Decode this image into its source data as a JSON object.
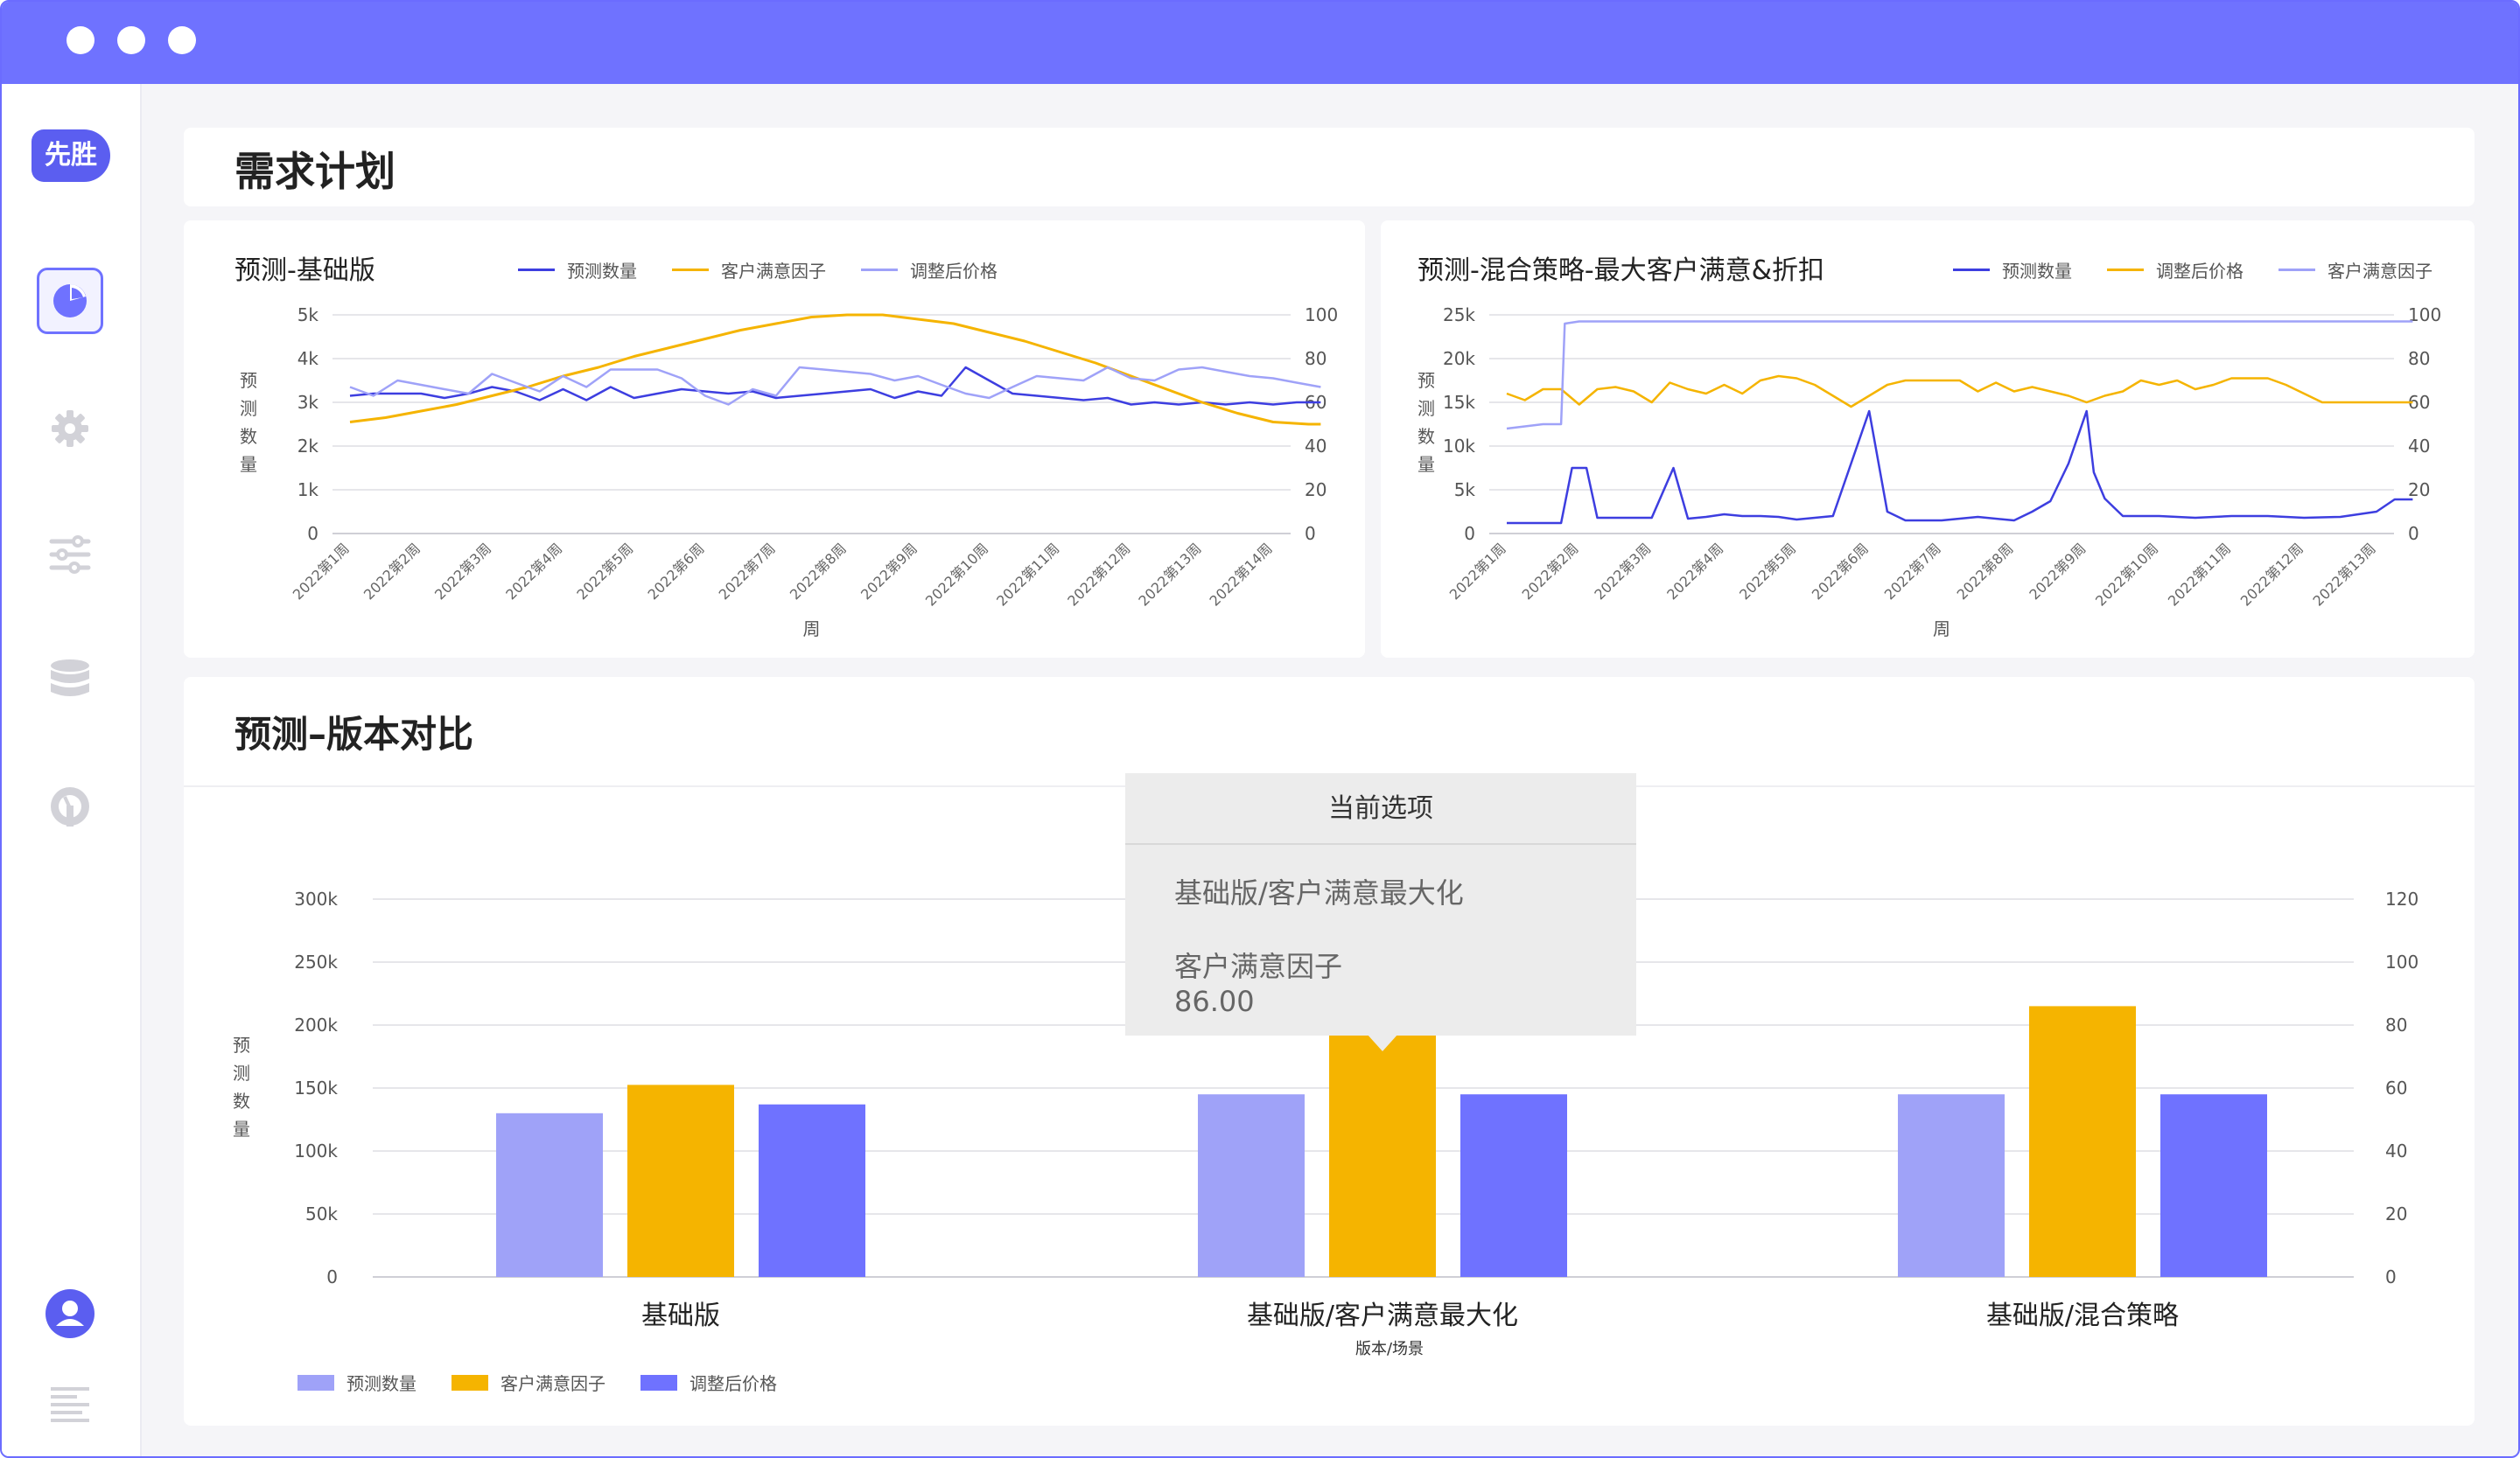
{
  "app": {
    "logo_text": "先胜"
  },
  "colors": {
    "accent": "#6f72ff",
    "qty_lavender": "#9fa2f8",
    "qty_dark": "#3d3ee0",
    "factor_orange": "#f5b400",
    "price_purple": "#6f72ff"
  },
  "sidebar": {
    "items": [
      {
        "icon": "pie-chart-icon",
        "active": true
      },
      {
        "icon": "gear-icon"
      },
      {
        "icon": "sliders-icon"
      },
      {
        "icon": "database-icon"
      },
      {
        "icon": "dashboard-icon"
      }
    ],
    "bottom": [
      {
        "icon": "user-icon"
      },
      {
        "icon": "menu-lines-icon"
      }
    ]
  },
  "page": {
    "title": "需求计划"
  },
  "chart1": {
    "title": "预测-基础版",
    "legend": [
      "预测数量",
      "客户满意因子",
      "调整后价格"
    ],
    "ylabel": "预测数量",
    "xlabel": "周",
    "yticks": [
      "5k",
      "4k",
      "3k",
      "2k",
      "1k",
      "0"
    ],
    "y2ticks": [
      "100",
      "80",
      "60",
      "40",
      "20",
      "0"
    ],
    "xticks": [
      "2022第1周",
      "2022第2周",
      "2022第3周",
      "2022第4周",
      "2022第5周",
      "2022第6周",
      "2022第7周",
      "2022第8周",
      "2022第9周",
      "2022第10周",
      "2022第11周",
      "2022第12周",
      "2022第13周",
      "2022第14周"
    ]
  },
  "chart2": {
    "title": "预测-混合策略-最大客户满意&折扣",
    "legend": [
      "预测数量",
      "调整后价格",
      "客户满意因子"
    ],
    "ylabel": "预测数量",
    "xlabel": "周",
    "yticks": [
      "25k",
      "20k",
      "15k",
      "10k",
      "5k",
      "0"
    ],
    "y2ticks": [
      "100",
      "80",
      "60",
      "40",
      "20",
      "0"
    ],
    "xticks": [
      "2022第1周",
      "2022第2周",
      "2022第3周",
      "2022第4周",
      "2022第5周",
      "2022第6周",
      "2022第7周",
      "2022第8周",
      "2022第9周",
      "2022第10周",
      "2022第11周",
      "2022第12周",
      "2022第13周"
    ]
  },
  "compare": {
    "title": "预测–版本对比",
    "ylabel": "预测数量",
    "xlabel": "版本/场景",
    "yticks": [
      "300k",
      "250k",
      "200k",
      "150k",
      "100k",
      "50k",
      "0"
    ],
    "y2ticks": [
      "120",
      "100",
      "80",
      "60",
      "40",
      "20",
      "0"
    ],
    "legend": [
      "预测数量",
      "客户满意因子",
      "调整后价格"
    ]
  },
  "tooltip": {
    "header": "当前选项",
    "line1": "基础版/客户满意最大化",
    "line2_label": "客户满意因子",
    "line2_value": "86.00"
  },
  "chart_data": [
    {
      "type": "line",
      "title": "预测-基础版",
      "xlabel": "周",
      "ylabel": "预测数量",
      "categories": [
        "2022第1周",
        "2022第2周",
        "2022第3周",
        "2022第4周",
        "2022第5周",
        "2022第6周",
        "2022第7周",
        "2022第8周",
        "2022第9周",
        "2022第10周",
        "2022第11周",
        "2022第12周",
        "2022第13周",
        "2022第14周"
      ],
      "ylim": [
        0,
        5000
      ],
      "y2lim": [
        0,
        100
      ],
      "series": [
        {
          "name": "预测数量",
          "axis": "left",
          "x": [
            1,
            1.33,
            1.67,
            2,
            2.33,
            2.67,
            3,
            3.33,
            3.67,
            4,
            4.33,
            4.67,
            5,
            5.33,
            5.67,
            6,
            6.33,
            6.67,
            7,
            7.33,
            7.67,
            8,
            8.33,
            8.67,
            9,
            9.33,
            9.67,
            10,
            10.33,
            10.67,
            11,
            11.33,
            11.67,
            12,
            12.33,
            12.67,
            13,
            13.33,
            13.67,
            14,
            14.33,
            14.67
          ],
          "values": [
            3150,
            3200,
            3200,
            3200,
            3100,
            3200,
            3350,
            3250,
            3050,
            3300,
            3050,
            3350,
            3100,
            3200,
            3300,
            3250,
            3200,
            3250,
            3100,
            3150,
            3200,
            3250,
            3300,
            3100,
            3250,
            3150,
            3800,
            3500,
            3200,
            3150,
            3100,
            3050,
            3100,
            2950,
            3000,
            2950,
            3000,
            2950,
            3000,
            2950,
            3000,
            3000
          ]
        },
        {
          "name": "客户满意因子",
          "axis": "right",
          "x": [
            1,
            1.5,
            2,
            2.5,
            3,
            3.5,
            4,
            4.5,
            5,
            5.5,
            6,
            6.5,
            7,
            7.5,
            8,
            8.5,
            9,
            9.5,
            10,
            10.5,
            11,
            11.5,
            12,
            12.5,
            13,
            13.5,
            14,
            14.5,
            14.67
          ],
          "values": [
            51,
            53,
            56,
            59,
            63,
            67,
            72,
            76,
            81,
            85,
            89,
            93,
            96,
            99,
            100,
            100,
            98,
            96,
            92,
            88,
            83,
            78,
            72,
            66,
            60,
            55,
            51,
            50,
            50
          ]
        },
        {
          "name": "调整后价格",
          "axis": "right",
          "x": [
            1,
            1.33,
            1.67,
            2,
            2.33,
            2.67,
            3,
            3.33,
            3.67,
            4,
            4.33,
            4.67,
            5,
            5.33,
            5.67,
            6,
            6.33,
            6.67,
            7,
            7.33,
            7.67,
            8,
            8.33,
            8.67,
            9,
            9.33,
            9.67,
            10,
            10.33,
            10.67,
            11,
            11.33,
            11.67,
            12,
            12.33,
            12.67,
            13,
            13.33,
            13.67,
            14,
            14.33,
            14.67
          ],
          "values": [
            67,
            63,
            70,
            68,
            66,
            64,
            73,
            69,
            65,
            72,
            67,
            75,
            75,
            75,
            71,
            63,
            59,
            66,
            63,
            76,
            75,
            74,
            73,
            70,
            72,
            68,
            64,
            62,
            67,
            72,
            71,
            70,
            76,
            71,
            70,
            75,
            76,
            74,
            72,
            71,
            69,
            67
          ]
        }
      ]
    },
    {
      "type": "line",
      "title": "预测-混合策略-最大客户满意&折扣",
      "xlabel": "周",
      "ylabel": "预测数量",
      "categories": [
        "2022第1周",
        "2022第2周",
        "2022第3周",
        "2022第4周",
        "2022第5周",
        "2022第6周",
        "2022第7周",
        "2022第8周",
        "2022第9周",
        "2022第10周",
        "2022第11周",
        "2022第12周",
        "2022第13周"
      ],
      "ylim": [
        0,
        25000
      ],
      "y2lim": [
        0,
        100
      ],
      "series": [
        {
          "name": "预测数量",
          "axis": "left",
          "x": [
            1,
            1.5,
            1.75,
            1.9,
            2,
            2.1,
            2.25,
            2.5,
            2.75,
            3,
            3.3,
            3.5,
            3.75,
            4,
            4.25,
            4.5,
            4.75,
            5,
            5.5,
            6,
            6.25,
            6.5,
            6.6,
            6.75,
            7,
            7.5,
            8,
            8.25,
            8.5,
            8.75,
            9,
            9.1,
            9.25,
            9.5,
            10,
            10.5,
            11,
            11.5,
            12,
            12.5,
            13,
            13.25,
            13.5
          ],
          "values": [
            1200,
            1200,
            1200,
            7500,
            7500,
            7500,
            1800,
            1800,
            1800,
            1800,
            7500,
            1700,
            1900,
            2200,
            2000,
            2000,
            1900,
            1600,
            2000,
            14000,
            2500,
            1500,
            1500,
            1500,
            1500,
            1900,
            1500,
            2500,
            3700,
            8000,
            14000,
            7000,
            4000,
            2000,
            2000,
            1800,
            2000,
            2000,
            1800,
            1900,
            2500,
            3900,
            3900
          ]
        },
        {
          "name": "调整后价格",
          "axis": "right",
          "x": [
            1,
            1.25,
            1.5,
            1.75,
            2,
            2.25,
            2.5,
            2.75,
            3,
            3.25,
            3.5,
            3.75,
            4,
            4.25,
            4.5,
            4.75,
            5,
            5.25,
            5.5,
            5.75,
            6,
            6.25,
            6.5,
            6.75,
            7,
            7.25,
            7.5,
            7.75,
            8,
            8.25,
            8.5,
            8.75,
            9,
            9.25,
            9.5,
            9.75,
            10,
            10.25,
            10.5,
            10.75,
            11,
            11.25,
            11.5,
            11.75,
            12,
            12.25,
            12.5,
            12.75,
            13,
            13.25,
            13.5
          ],
          "values": [
            64,
            61,
            66,
            66,
            59,
            66,
            67,
            65,
            60,
            69,
            66,
            64,
            68,
            64,
            70,
            72,
            71,
            68,
            63,
            58,
            63,
            68,
            70,
            70,
            70,
            70,
            65,
            69,
            65,
            67,
            65,
            63,
            60,
            63,
            65,
            70,
            68,
            70,
            66,
            68,
            71,
            71,
            71,
            68,
            64,
            60,
            60,
            60,
            60,
            60,
            60
          ]
        },
        {
          "name": "客户满意因子",
          "axis": "right",
          "x": [
            1,
            1.5,
            1.75,
            1.8,
            2,
            3,
            4,
            5,
            6,
            7,
            8,
            9,
            10,
            11,
            12,
            13,
            13.5
          ],
          "values": [
            48,
            50,
            50,
            96,
            97,
            97,
            97,
            97,
            97,
            97,
            97,
            97,
            97,
            97,
            97,
            97,
            97
          ]
        }
      ]
    },
    {
      "type": "bar",
      "title": "预测–版本对比",
      "xlabel": "版本/场景",
      "ylabel": "预测数量",
      "categories": [
        "基础版",
        "基础版/客户满意最大化",
        "基础版/混合策略"
      ],
      "ylim": [
        0,
        300000
      ],
      "y2lim": [
        0,
        120
      ],
      "series": [
        {
          "name": "预测数量",
          "axis": "left",
          "values": [
            130000,
            145000,
            145000
          ]
        },
        {
          "name": "客户满意因子",
          "axis": "right",
          "values": [
            61,
            86,
            86
          ]
        },
        {
          "name": "调整后价格",
          "axis": "left",
          "values": [
            137000,
            145000,
            145000
          ]
        }
      ]
    }
  ]
}
